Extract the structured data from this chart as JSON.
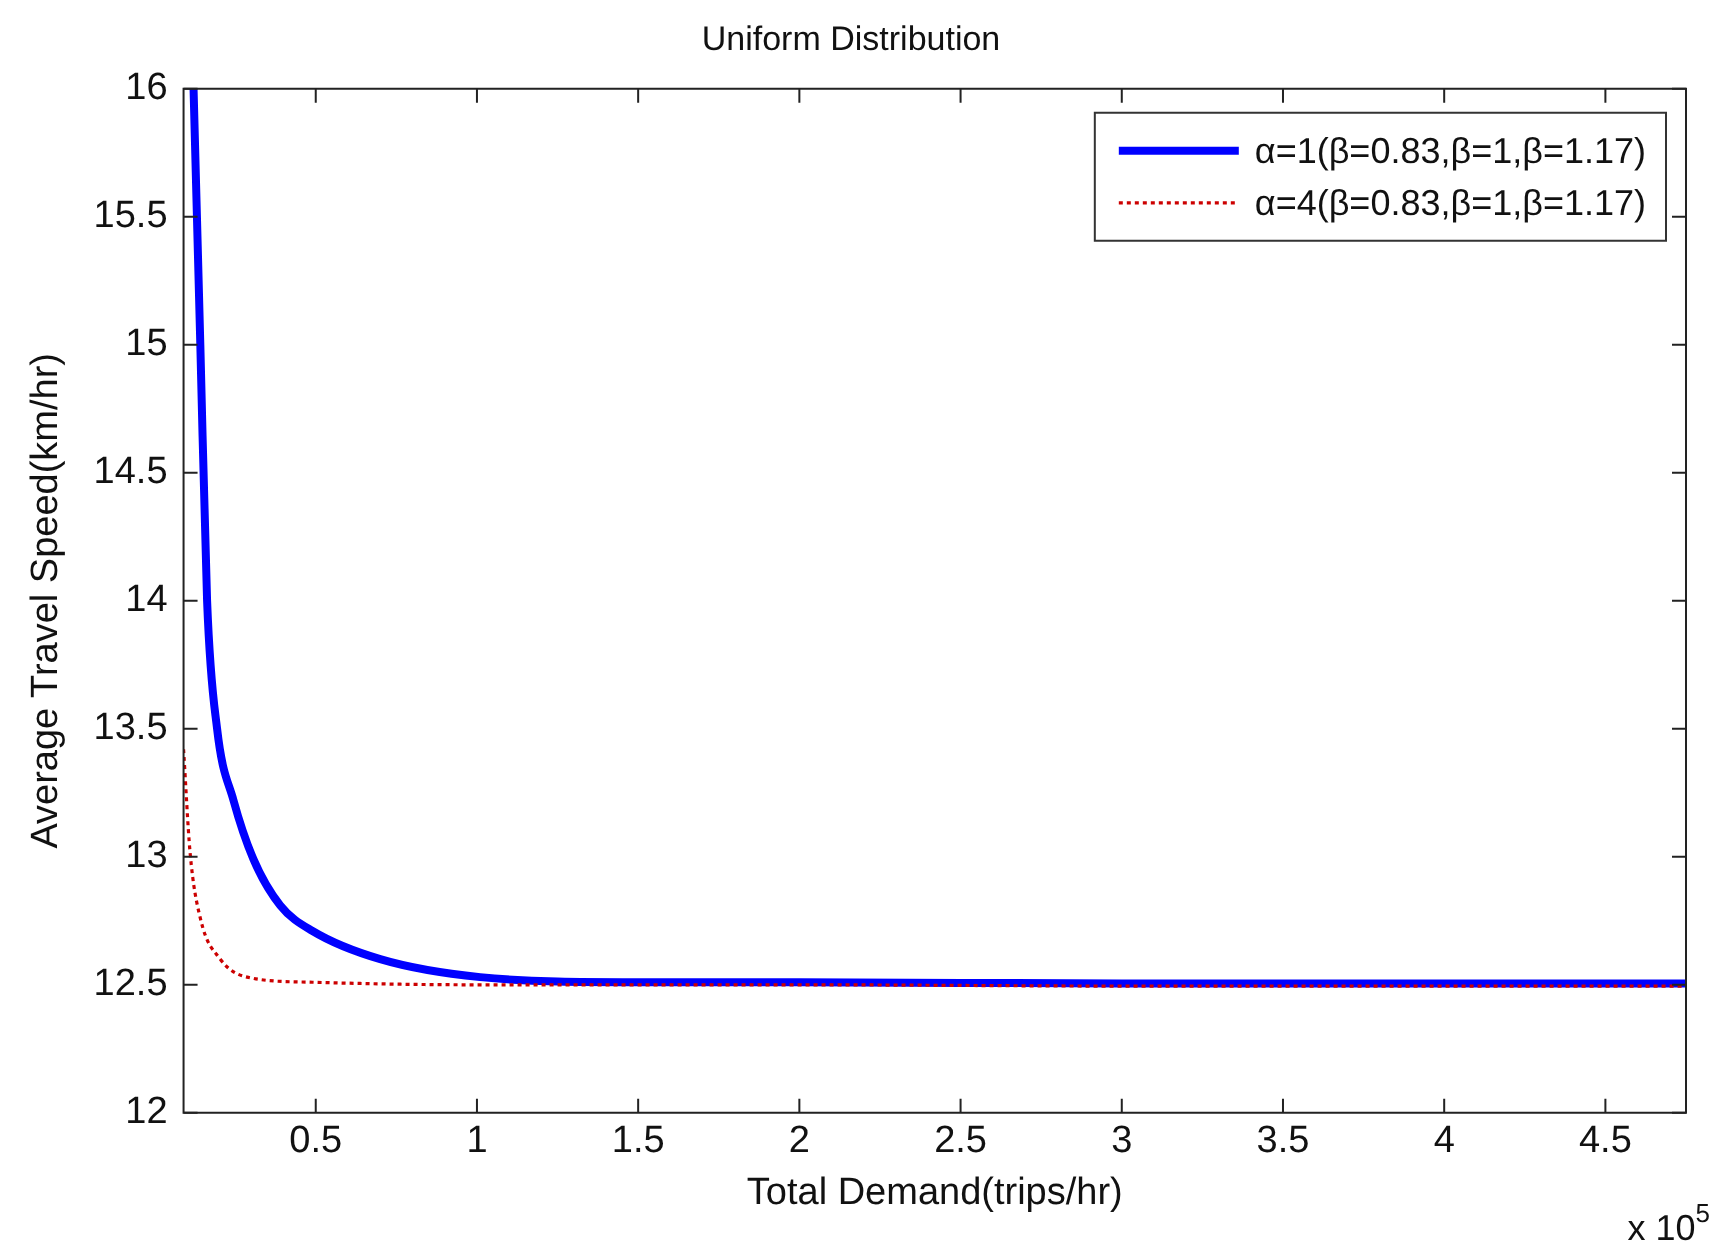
{
  "chart_data": {
    "type": "line",
    "title": "Uniform Distribution",
    "xlabel": "Total Demand(trips/hr)",
    "ylabel": "Average Travel Speed(km/hr)",
    "xlim": [
      0.09,
      4.75
    ],
    "xticks": [
      0.5,
      1,
      1.5,
      2,
      2.5,
      3,
      3.5,
      4,
      4.5
    ],
    "ylim": [
      12,
      16
    ],
    "yticks": [
      12,
      12.5,
      13,
      13.5,
      14,
      14.5,
      15,
      15.5,
      16
    ],
    "grid": false,
    "legend": "top right",
    "marker": "none",
    "annotations": [
      "x 10$^{5}$"
    ],
    "series": [
      {
        "name": "α=1(β=0.83,β=1,β=1.17)",
        "color": "#0000ff",
        "line_style": "solid",
        "x": [
          0.121,
          0.142,
          0.163,
          0.194,
          0.245,
          0.307,
          0.39,
          0.49,
          0.7,
          1.01,
          1.49,
          2,
          3,
          4,
          4.75
        ],
        "values": [
          16,
          15,
          14,
          13.5,
          13.22,
          12.99,
          12.81,
          12.71,
          12.6,
          12.53,
          12.51,
          12.51,
          12.505,
          12.505,
          12.505
        ]
      },
      {
        "name": "α=4(β=0.83,β=1,β=1.17)",
        "color": "#cc0000",
        "line_style": "dotted",
        "x": [
          0.09,
          0.11,
          0.142,
          0.204,
          0.287,
          0.49,
          1,
          2,
          3,
          4,
          4.75
        ],
        "values": [
          13.42,
          13.02,
          12.76,
          12.6,
          12.53,
          12.51,
          12.5,
          12.5,
          12.495,
          12.495,
          12.495
        ]
      }
    ]
  }
}
